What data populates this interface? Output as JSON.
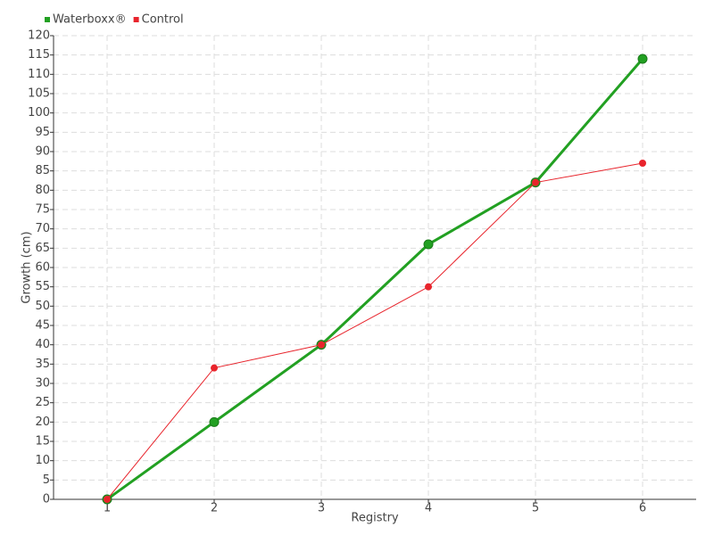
{
  "chart_data": {
    "type": "line",
    "xlabel": "Registry",
    "ylabel": "Growth (cm)",
    "x": [
      1,
      2,
      3,
      4,
      5,
      6
    ],
    "series": [
      {
        "name": "Waterboxx®",
        "color": "#22a022",
        "values": [
          0,
          20,
          40,
          66,
          82,
          114
        ]
      },
      {
        "name": "Control",
        "color": "#e8242c",
        "values": [
          0,
          34,
          40,
          55,
          82,
          87
        ]
      }
    ],
    "xlim": [
      0.5,
      6.5
    ],
    "xticks": [
      1,
      2,
      3,
      4,
      5,
      6
    ],
    "ylim": [
      0,
      120
    ],
    "yticks": [
      0,
      5,
      10,
      15,
      20,
      25,
      30,
      35,
      40,
      45,
      50,
      55,
      60,
      65,
      70,
      75,
      80,
      85,
      90,
      95,
      100,
      105,
      110,
      115,
      120
    ],
    "grid": true,
    "legend": "top-left"
  }
}
